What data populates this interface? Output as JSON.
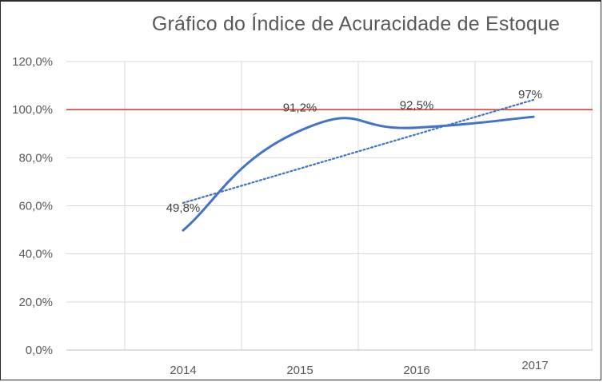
{
  "chart_data": {
    "type": "line",
    "title": "Gráfico do Índice de Acuracidade de Estoque",
    "xlabel": "",
    "ylabel": "",
    "categories": [
      "2014",
      "2015",
      "2016",
      "2017"
    ],
    "series": [
      {
        "values": [
          49.8,
          91.2,
          92.5,
          97
        ],
        "labels": [
          "49,8%",
          "91,2%",
          "92,5%",
          "97%"
        ],
        "color": "#4472c4",
        "smoothed": true
      }
    ],
    "trendline": {
      "type": "linear",
      "style": "dotted",
      "color": "#4472c4"
    },
    "reference_line": {
      "value": 100,
      "color": "#e0403c"
    },
    "ylim": [
      0,
      120
    ],
    "yticks": [
      {
        "value": 0,
        "label": "0,0%"
      },
      {
        "value": 20,
        "label": "20,0%"
      },
      {
        "value": 40,
        "label": "40,0%"
      },
      {
        "value": 60,
        "label": "60,0%"
      },
      {
        "value": 80,
        "label": "80,0%"
      },
      {
        "value": 100,
        "label": "100,0%"
      },
      {
        "value": 120,
        "label": "120,0%"
      }
    ],
    "grid": true,
    "legend": "none"
  }
}
